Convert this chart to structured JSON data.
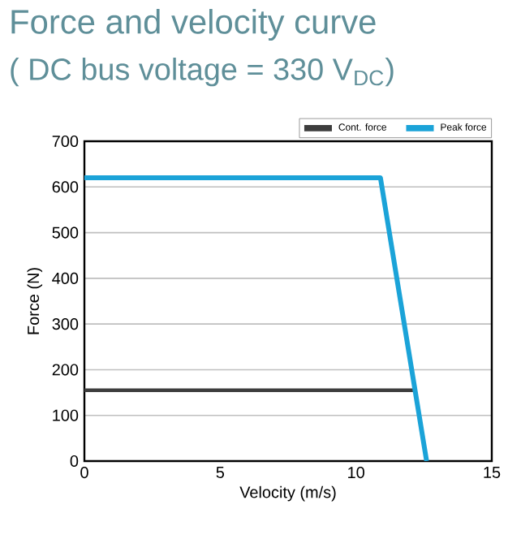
{
  "chart_data": {
    "type": "line",
    "title": "Force and velocity curve",
    "subtitle": "( DC bus voltage = 330 V$_{DC}$)",
    "xlabel": "Velocity (m/s)",
    "ylabel": "Force (N)",
    "xlim": [
      0,
      15
    ],
    "ylim": [
      0,
      700
    ],
    "xticks": [
      0,
      5,
      10,
      15
    ],
    "yticks": [
      0,
      100,
      200,
      300,
      400,
      500,
      600,
      700
    ],
    "grid": "y",
    "legend": "top right",
    "marker": "none",
    "line_style": "solid",
    "series": [
      {
        "name": "Cont. force",
        "color": "#3d3d3d",
        "x": [
          0,
          12.1
        ],
        "values": [
          155,
          155
        ]
      },
      {
        "name": "Peak force",
        "color": "#1ba3d8",
        "x": [
          0,
          10.9,
          12.6
        ],
        "values": [
          620,
          620,
          0
        ]
      }
    ]
  }
}
